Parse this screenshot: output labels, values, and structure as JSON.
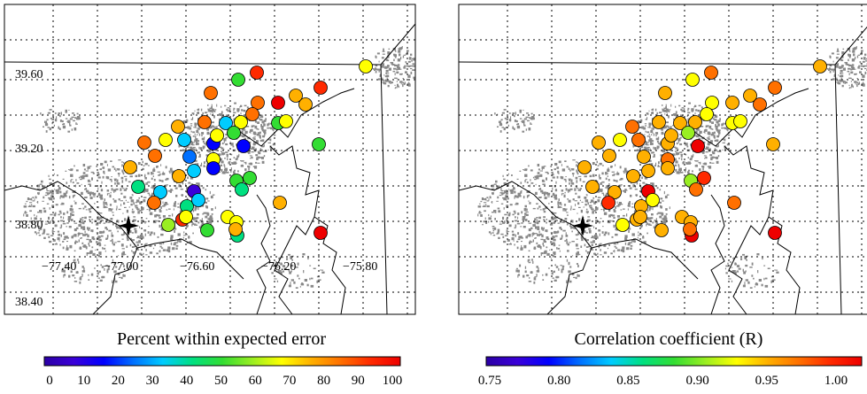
{
  "panels": [
    {
      "id": "left",
      "colorbar_title": "Percent within expected error",
      "colorbar_ticks": [
        "0",
        "10",
        "20",
        "30",
        "40",
        "50",
        "60",
        "70",
        "80",
        "90",
        "100"
      ],
      "lat_labels": [
        "39.60",
        "39.20",
        "38.80",
        "38.40"
      ],
      "lon_labels": [
        "−77.40",
        "−77.00",
        "−76.60",
        "−76.20",
        "−75.80"
      ],
      "colors": [
        "#2b00a5",
        "#3a00d8",
        "#0000ff",
        "#0070ff",
        "#00ccff",
        "#00e080",
        "#33dd33",
        "#99ee22",
        "#ffff00",
        "#ffb000",
        "#ff7000",
        "#ff2a00",
        "#ee0000"
      ]
    },
    {
      "id": "right",
      "colorbar_title": "Correlation coefficient (R)",
      "colorbar_ticks": [
        "0.75",
        "0.80",
        "0.85",
        "0.90",
        "0.95",
        "1.00"
      ],
      "colors": [
        "#2b00a5",
        "#3a00d8",
        "#0000ff",
        "#0070ff",
        "#00ccff",
        "#00e080",
        "#33dd33",
        "#99ee22",
        "#ffff00",
        "#ffb000",
        "#ff7000",
        "#ff2a00",
        "#ee0000"
      ]
    }
  ],
  "markers": {
    "star": "city-center-star"
  },
  "stations": {
    "left_colors": [
      "#ff2a00",
      "#33dd33",
      "#ff7000",
      "#ff2a00",
      "#ffb000",
      "#ffb000",
      "#ff7000",
      "#ee0000",
      "#ff7000",
      "#33dd33",
      "#ffff00",
      "#ffff00",
      "#ff7000",
      "#ffb000",
      "#00ccff",
      "#33dd33",
      "#ff7000",
      "#ffff00",
      "#0000ff",
      "#00ccff",
      "#0000ff",
      "#33dd33",
      "#ffff00",
      "#0000ff",
      "#0070ff",
      "#ffb000",
      "#ff7000",
      "#ffb000",
      "#00ccff",
      "#00e080",
      "#33dd33",
      "#00e080",
      "#00ccff",
      "#3a00d8",
      "#33dd33",
      "#00e080",
      "#00ccff",
      "#ffff00",
      "#ffff00",
      "#00e080",
      "#33dd33",
      "#ffb000",
      "#ffff00",
      "#ee0000",
      "#ffb000",
      "#ff2a00",
      "#ffff00",
      "#99ee22",
      "#ff7000",
      "#ffff00"
    ],
    "right_colors": [
      "#ff7000",
      "#ffff00",
      "#ffb000",
      "#ff7000",
      "#ffb000",
      "#ff7000",
      "#ffff00",
      "#ffb000",
      "#ffff00",
      "#ffff00",
      "#ffff00",
      "#ffb000",
      "#ffb000",
      "#ff7000",
      "#ffb000",
      "#99ee22",
      "#ffb000",
      "#ffff00",
      "#ffb000",
      "#ff7000",
      "#ee0000",
      "#ffb000",
      "#ff7000",
      "#ffb000",
      "#ffb000",
      "#ffb000",
      "#ffb000",
      "#ffb000",
      "#ffb000",
      "#ffb000",
      "#99ee22",
      "#ff7000",
      "#ffb000",
      "#ee0000",
      "#ff2a00",
      "#ffb000",
      "#ffff00",
      "#ffb000",
      "#ffb000",
      "#ee0000",
      "#ffb000",
      "#ff7000",
      "#ffb000",
      "#ee0000",
      "#ff7000",
      "#ffb000",
      "#ffb000",
      "#ffff00",
      "#ff2a00",
      "#ffb000"
    ]
  }
}
